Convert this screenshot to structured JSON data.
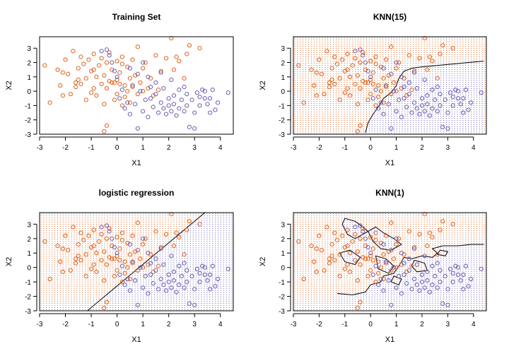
{
  "colors": {
    "orange": "#e0611a",
    "blue": "#6a5fb5",
    "line": "#000000"
  },
  "chart_data": [
    {
      "type": "scatter",
      "title": "Training Set",
      "xlabel": "X1",
      "ylabel": "X2",
      "xlim": [
        -3,
        4.5
      ],
      "ylim": [
        -3,
        3.8
      ],
      "xticks": [
        "-3",
        "-2",
        "-1",
        "0",
        "1",
        "2",
        "3",
        "4"
      ],
      "yticks": [
        "-3",
        "-2",
        "-1",
        "0",
        "1",
        "2",
        "3"
      ],
      "background_grid": false,
      "decision_boundary": "none",
      "series": [
        {
          "color": "orange",
          "points": [
            [
              -2.8,
              1.8
            ],
            [
              -2.6,
              -0.8
            ],
            [
              -2.3,
              1.5
            ],
            [
              -2.2,
              0.4
            ],
            [
              -2.1,
              1.3
            ],
            [
              -2.0,
              2.2
            ],
            [
              -1.9,
              1.2
            ],
            [
              -1.8,
              -0.2
            ],
            [
              -1.7,
              2.8
            ],
            [
              -1.6,
              0.6
            ],
            [
              -1.6,
              0.3
            ],
            [
              -1.5,
              1.6
            ],
            [
              -1.5,
              0.8
            ],
            [
              -1.4,
              2.4
            ],
            [
              -1.4,
              0.5
            ],
            [
              -1.3,
              1.9
            ],
            [
              -1.2,
              -0.6
            ],
            [
              -1.2,
              0.9
            ],
            [
              -1.1,
              2.2
            ],
            [
              -1.0,
              1.4
            ],
            [
              -1.0,
              -0.1
            ],
            [
              -0.9,
              0.2
            ],
            [
              -0.9,
              2.6
            ],
            [
              -0.8,
              1.0
            ],
            [
              -0.8,
              -0.3
            ],
            [
              -0.7,
              1.8
            ],
            [
              -0.6,
              0.5
            ],
            [
              -0.6,
              2.3
            ],
            [
              -0.5,
              1.1
            ],
            [
              -0.5,
              -0.9
            ],
            [
              -0.4,
              2.0
            ],
            [
              -0.4,
              0.2
            ],
            [
              -0.3,
              0.7
            ],
            [
              -0.3,
              2.7
            ],
            [
              -0.2,
              0.6
            ],
            [
              -0.2,
              1.5
            ],
            [
              -0.1,
              0.6
            ],
            [
              -0.1,
              -0.6
            ],
            [
              0.0,
              0.8
            ],
            [
              0.0,
              2.1
            ],
            [
              0.0,
              -0.2
            ],
            [
              0.1,
              0.5
            ],
            [
              0.1,
              1.3
            ],
            [
              0.2,
              -1.0
            ],
            [
              0.2,
              2.4
            ],
            [
              0.3,
              0.4
            ],
            [
              0.3,
              -0.4
            ],
            [
              0.4,
              1.7
            ],
            [
              0.4,
              0.0
            ],
            [
              0.5,
              0.9
            ],
            [
              0.5,
              -0.8
            ],
            [
              0.6,
              2.2
            ],
            [
              0.6,
              0.3
            ],
            [
              0.7,
              1.1
            ],
            [
              0.8,
              3.1
            ],
            [
              0.8,
              -0.2
            ],
            [
              0.9,
              0.6
            ],
            [
              1.0,
              1.6
            ],
            [
              1.1,
              2.0
            ],
            [
              1.2,
              0.2
            ],
            [
              1.3,
              0.9
            ],
            [
              1.4,
              -0.3
            ],
            [
              1.5,
              2.5
            ],
            [
              1.6,
              0.1
            ],
            [
              1.7,
              1.4
            ],
            [
              1.9,
              2.3
            ],
            [
              2.1,
              3.7
            ],
            [
              2.2,
              1.5
            ],
            [
              2.3,
              2.4
            ],
            [
              2.4,
              2.1
            ],
            [
              2.6,
              0.9
            ],
            [
              2.7,
              2.6
            ],
            [
              2.8,
              3.2
            ],
            [
              3.2,
              3.0
            ],
            [
              -0.5,
              -2.8
            ],
            [
              -0.4,
              -2.4
            ],
            [
              -2.1,
              -0.3
            ],
            [
              -0.9,
              1.5
            ],
            [
              1.0,
              0.0
            ],
            [
              0.2,
              1.9
            ]
          ]
        },
        {
          "color": "blue",
          "points": [
            [
              -0.6,
              2.8
            ],
            [
              -0.4,
              2.9
            ],
            [
              -0.3,
              2.5
            ],
            [
              -0.2,
              2.0
            ],
            [
              -0.1,
              1.4
            ],
            [
              0.0,
              1.0
            ],
            [
              0.1,
              -0.5
            ],
            [
              0.2,
              0.1
            ],
            [
              0.3,
              -1.2
            ],
            [
              0.4,
              -0.8
            ],
            [
              0.5,
              1.6
            ],
            [
              0.5,
              -1.6
            ],
            [
              0.6,
              0.4
            ],
            [
              0.7,
              -0.9
            ],
            [
              0.8,
              -2.6
            ],
            [
              0.8,
              1.2
            ],
            [
              0.9,
              0.0
            ],
            [
              1.0,
              -1.4
            ],
            [
              1.0,
              2.0
            ],
            [
              1.1,
              -0.6
            ],
            [
              1.2,
              1.0
            ],
            [
              1.2,
              -1.8
            ],
            [
              1.3,
              0.3
            ],
            [
              1.4,
              -1.1
            ],
            [
              1.5,
              0.6
            ],
            [
              1.5,
              -0.2
            ],
            [
              1.6,
              -1.5
            ],
            [
              1.7,
              1.3
            ],
            [
              1.7,
              -0.8
            ],
            [
              1.8,
              -1.2
            ],
            [
              1.8,
              0.2
            ],
            [
              1.9,
              -1.6
            ],
            [
              2.0,
              -0.5
            ],
            [
              2.0,
              -1.0
            ],
            [
              2.1,
              0.8
            ],
            [
              2.1,
              -1.4
            ],
            [
              2.2,
              -0.3
            ],
            [
              2.2,
              -0.9
            ],
            [
              2.3,
              -1.7
            ],
            [
              2.4,
              -1.2
            ],
            [
              2.4,
              0.1
            ],
            [
              2.5,
              -0.6
            ],
            [
              2.6,
              -1.4
            ],
            [
              2.7,
              -0.2
            ],
            [
              2.7,
              -1.0
            ],
            [
              2.8,
              -2.5
            ],
            [
              2.9,
              -0.6
            ],
            [
              3.0,
              -1.5
            ],
            [
              3.0,
              -2.6
            ],
            [
              3.1,
              -0.1
            ],
            [
              3.2,
              -1.0
            ],
            [
              3.2,
              -0.4
            ],
            [
              3.3,
              0.1
            ],
            [
              3.4,
              -0.5
            ],
            [
              3.4,
              0.0
            ],
            [
              3.5,
              -0.9
            ],
            [
              3.6,
              -1.5
            ],
            [
              3.6,
              -0.5
            ],
            [
              3.7,
              0.1
            ],
            [
              3.8,
              -1.3
            ],
            [
              3.9,
              -0.8
            ],
            [
              4.3,
              -0.1
            ],
            [
              2.6,
              0.3
            ],
            [
              1.3,
              -0.5
            ]
          ]
        }
      ]
    },
    {
      "type": "scatter",
      "title": "KNN(15)",
      "xlabel": "X1",
      "ylabel": "X2",
      "xlim": [
        -3,
        4.5
      ],
      "ylim": [
        -3,
        3.8
      ],
      "xticks": [
        "-3",
        "-2",
        "-1",
        "0",
        "1",
        "2",
        "3",
        "4"
      ],
      "yticks": [
        "-3",
        "-2",
        "-1",
        "0",
        "1",
        "2",
        "3"
      ],
      "background_grid": true,
      "decision_boundary": "knn15",
      "boundary": [
        [
          -0.2,
          -2.9
        ],
        [
          -0.1,
          -2.2
        ],
        [
          0.1,
          -1.6
        ],
        [
          0.3,
          -1.1
        ],
        [
          0.5,
          -0.5
        ],
        [
          0.8,
          -0.1
        ],
        [
          1.0,
          0.4
        ],
        [
          1.1,
          0.9
        ],
        [
          1.3,
          1.4
        ],
        [
          1.6,
          1.6
        ],
        [
          2.0,
          1.7
        ],
        [
          2.6,
          1.8
        ],
        [
          3.2,
          1.9
        ],
        [
          3.8,
          2.0
        ],
        [
          4.4,
          2.1
        ]
      ],
      "series_ref": "same as Training Set"
    },
    {
      "type": "scatter",
      "title": "logistic regression",
      "xlabel": "X1",
      "ylabel": "X2",
      "xlim": [
        -3,
        4.5
      ],
      "ylim": [
        -3,
        3.8
      ],
      "xticks": [
        "-3",
        "-2",
        "-1",
        "0",
        "1",
        "2",
        "3",
        "4"
      ],
      "yticks": [
        "-3",
        "-2",
        "-1",
        "0",
        "1",
        "2",
        "3"
      ],
      "background_grid": true,
      "decision_boundary": "linear",
      "boundary": [
        [
          -1.15,
          -3.0
        ],
        [
          3.4,
          3.8
        ]
      ],
      "series_ref": "same as Training Set"
    },
    {
      "type": "scatter",
      "title": "KNN(1)",
      "xlabel": "X1",
      "ylabel": "X2",
      "xlim": [
        -3,
        4.5
      ],
      "ylim": [
        -3,
        3.8
      ],
      "xticks": [
        "-3",
        "-2",
        "-1",
        "0",
        "1",
        "2",
        "3",
        "4"
      ],
      "yticks": [
        "-3",
        "-2",
        "-1",
        "0",
        "1",
        "2",
        "3"
      ],
      "background_grid": true,
      "decision_boundary": "knn1",
      "boundary": [
        [
          -1.3,
          -1.8
        ],
        [
          -0.7,
          -1.9
        ],
        [
          -0.2,
          -1.7
        ],
        [
          0.0,
          -1.2
        ],
        [
          0.4,
          -1.0
        ],
        [
          0.5,
          -0.6
        ],
        [
          0.9,
          -0.4
        ],
        [
          1.1,
          0.1
        ],
        [
          1.3,
          0.7
        ],
        [
          1.6,
          0.6
        ],
        [
          2.0,
          0.8
        ],
        [
          2.4,
          0.7
        ],
        [
          2.6,
          1.0
        ],
        [
          2.4,
          1.3
        ],
        [
          2.8,
          1.5
        ],
        [
          3.4,
          1.5
        ],
        [
          3.9,
          1.6
        ],
        [
          4.4,
          1.6
        ]
      ],
      "boundary_loops": [
        [
          [
            -1.0,
            3.4
          ],
          [
            -0.6,
            3.2
          ],
          [
            -0.3,
            2.8
          ],
          [
            -0.1,
            2.5
          ],
          [
            -0.6,
            2.0
          ],
          [
            -0.9,
            2.3
          ],
          [
            -1.1,
            3.0
          ],
          [
            -1.0,
            3.4
          ]
        ],
        [
          [
            -0.1,
            2.5
          ],
          [
            0.2,
            2.8
          ],
          [
            0.5,
            2.4
          ],
          [
            0.9,
            2.0
          ],
          [
            1.2,
            1.6
          ],
          [
            0.8,
            1.2
          ],
          [
            0.4,
            1.3
          ],
          [
            0.1,
            1.8
          ],
          [
            -0.1,
            2.5
          ]
        ],
        [
          [
            -1.2,
            1.0
          ],
          [
            -0.8,
            1.2
          ],
          [
            -0.4,
            0.7
          ],
          [
            -0.6,
            0.2
          ],
          [
            -1.0,
            0.4
          ],
          [
            -1.2,
            1.0
          ]
        ],
        [
          [
            0.2,
            0.8
          ],
          [
            0.6,
            0.6
          ],
          [
            0.9,
            0.1
          ],
          [
            0.7,
            -0.4
          ],
          [
            0.3,
            -0.1
          ],
          [
            0.2,
            0.8
          ]
        ],
        [
          [
            1.7,
            0.5
          ],
          [
            2.1,
            0.3
          ],
          [
            2.2,
            -0.2
          ],
          [
            1.8,
            -0.3
          ],
          [
            1.6,
            0.1
          ],
          [
            1.7,
            0.5
          ]
        ],
        [
          [
            0.9,
            -0.6
          ],
          [
            1.2,
            -0.8
          ],
          [
            1.1,
            -1.2
          ],
          [
            0.8,
            -1.0
          ],
          [
            0.9,
            -0.6
          ]
        ],
        [
          [
            2.7,
            1.2
          ],
          [
            3.0,
            1.1
          ],
          [
            2.9,
            0.8
          ],
          [
            2.6,
            0.9
          ],
          [
            2.7,
            1.2
          ]
        ]
      ],
      "series_ref": "same as Training Set"
    }
  ]
}
